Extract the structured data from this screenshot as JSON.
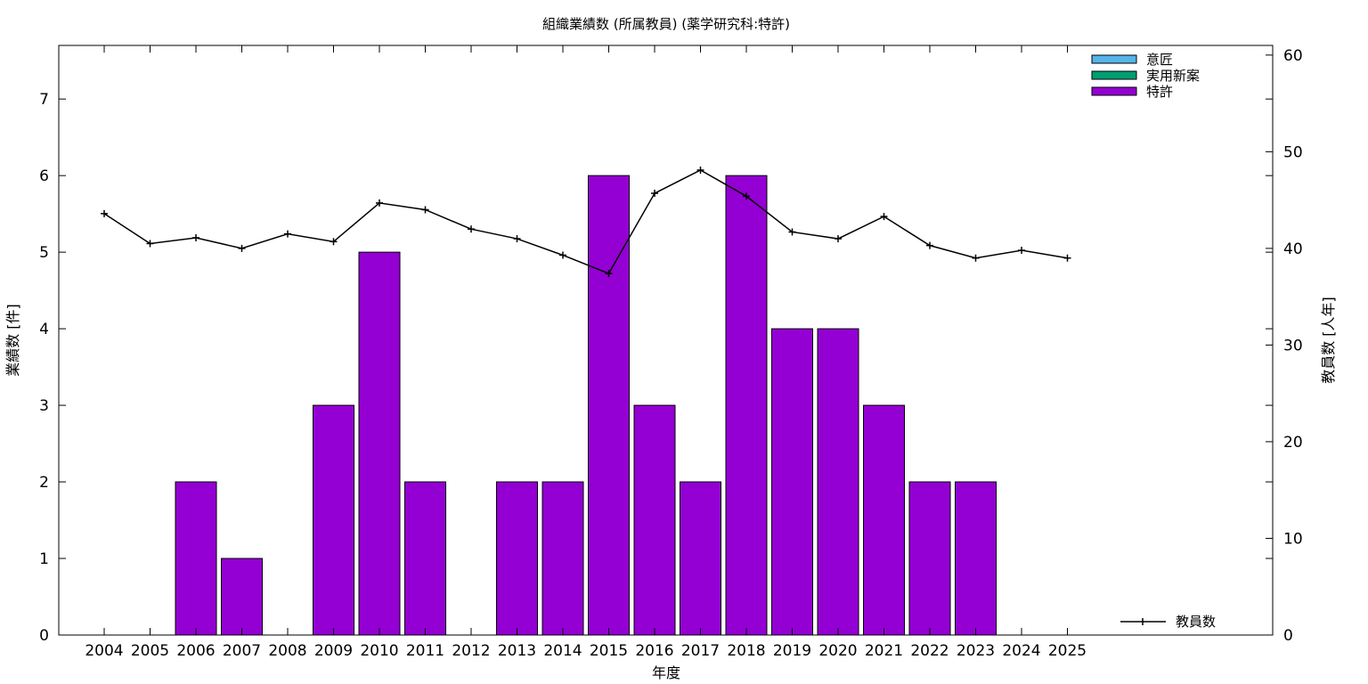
{
  "chart_data": {
    "type": "bar",
    "title": "組織業績数 (所属教員) (薬学研究科:特許)",
    "xlabel": "年度",
    "ylabel": "業績数 [件]",
    "y2label": "教員数 [人年]",
    "categories": [
      "2004",
      "2005",
      "2006",
      "2007",
      "2008",
      "2009",
      "2010",
      "2011",
      "2012",
      "2013",
      "2014",
      "2015",
      "2016",
      "2017",
      "2018",
      "2019",
      "2020",
      "2021",
      "2022",
      "2023",
      "2024",
      "2025"
    ],
    "ylim": [
      0,
      7.7
    ],
    "yticks": [
      "0",
      "1",
      "2",
      "3",
      "4",
      "5",
      "6",
      "7"
    ],
    "y2lim": [
      0,
      61
    ],
    "y2ticks": [
      "0",
      "10",
      "20",
      "30",
      "40",
      "50",
      "60"
    ],
    "series": [
      {
        "name": "意匠",
        "color": "#56b4e9",
        "values": [
          0,
          0,
          0,
          0,
          0,
          0,
          0,
          0,
          0,
          0,
          0,
          0,
          0,
          0,
          0,
          0,
          0,
          0,
          0,
          0,
          0,
          0
        ]
      },
      {
        "name": "実用新案",
        "color": "#009e73",
        "values": [
          0,
          0,
          0,
          0,
          0,
          0,
          0,
          0,
          0,
          0,
          0,
          0,
          0,
          0,
          0,
          0,
          0,
          0,
          0,
          0,
          0,
          0
        ]
      },
      {
        "name": "特許",
        "color": "#9400d3",
        "values": [
          0,
          0,
          2,
          1,
          0,
          3,
          5,
          2,
          0,
          2,
          2,
          6,
          3,
          2,
          6,
          4,
          4,
          3,
          2,
          2,
          0,
          0
        ]
      }
    ],
    "line_series": {
      "name": "教員数",
      "axis": "y2",
      "color": "#000000",
      "values": [
        43.6,
        40.5,
        41.1,
        40.0,
        41.5,
        40.7,
        44.7,
        44.0,
        42.0,
        41.0,
        39.3,
        37.4,
        45.7,
        48.1,
        45.4,
        41.7,
        41.0,
        43.3,
        40.3,
        39.0,
        39.8,
        39.0
      ]
    },
    "legend_position": "top-right",
    "line_legend_position": "bottom-right",
    "grid": false
  }
}
